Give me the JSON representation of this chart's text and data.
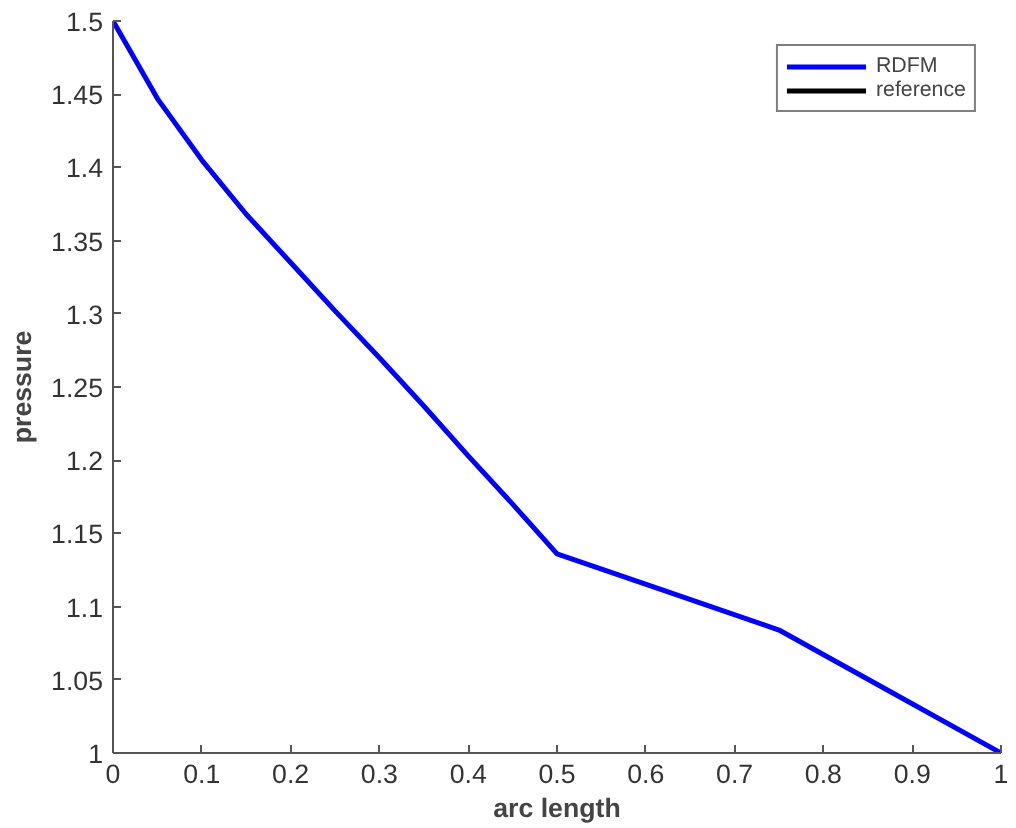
{
  "chart_data": {
    "type": "line",
    "xlabel": "arc length",
    "ylabel": "pressure",
    "x": [
      0,
      0.05,
      0.1,
      0.15,
      0.2,
      0.25,
      0.3,
      0.35,
      0.4,
      0.45,
      0.5,
      0.625,
      0.75,
      0.875,
      1
    ],
    "xlim": [
      0,
      1
    ],
    "xticks": [
      0,
      0.1,
      0.2,
      0.3,
      0.4,
      0.5,
      0.6,
      0.7,
      0.8,
      0.9,
      1
    ],
    "ylim": [
      1,
      1.5
    ],
    "yticks": [
      1,
      1.05,
      1.1,
      1.15,
      1.2,
      1.25,
      1.3,
      1.35,
      1.4,
      1.45,
      1.5
    ],
    "series": [
      {
        "name": "RDFM",
        "color": "#0000ff",
        "values": [
          1.5,
          1.447,
          1.405,
          1.368,
          1.335,
          1.302,
          1.27,
          1.237,
          1.203,
          1.17,
          1.136,
          1.11,
          1.084,
          1.042,
          1.0
        ]
      },
      {
        "name": "reference",
        "color": "#000000",
        "values": [
          null,
          null,
          null,
          null,
          null,
          null,
          null,
          null,
          null,
          null,
          null,
          null,
          null,
          null,
          null
        ]
      }
    ],
    "legend": "top right",
    "grid": false,
    "marker": "none",
    "line_style": "solid"
  }
}
